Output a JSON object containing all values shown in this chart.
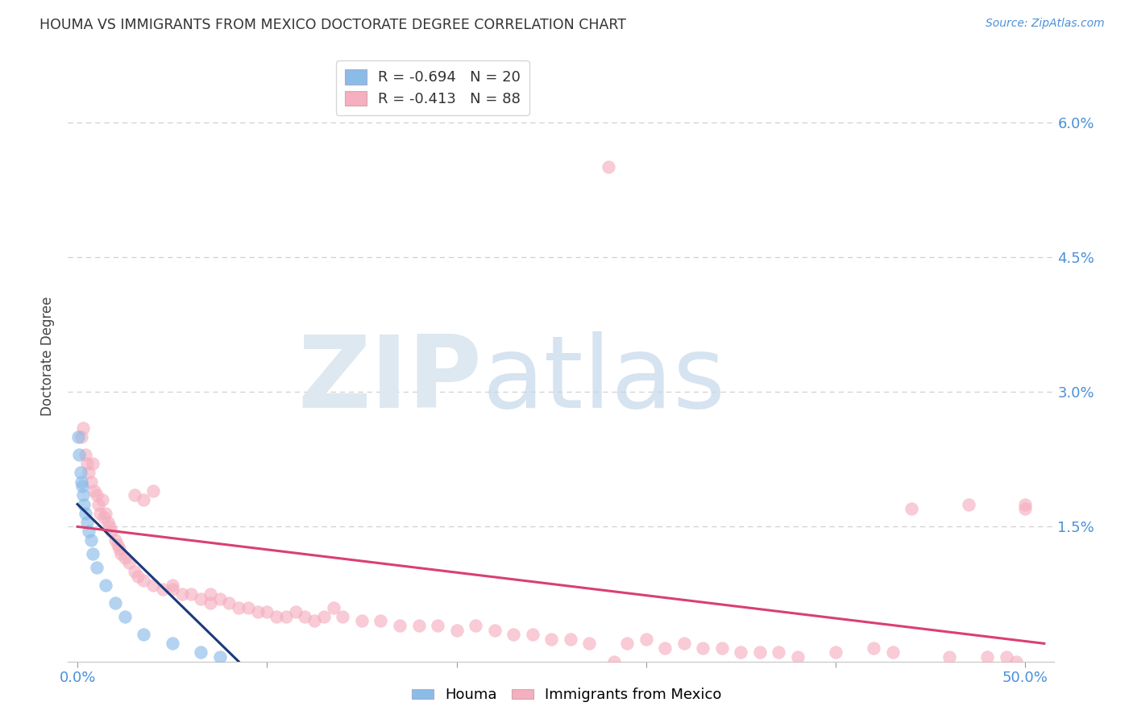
{
  "title": "HOUMA VS IMMIGRANTS FROM MEXICO DOCTORATE DEGREE CORRELATION CHART",
  "source": "Source: ZipAtlas.com",
  "ylabel": "Doctorate Degree",
  "houma_color": "#8bbce8",
  "houma_edge_color": "#8bbce8",
  "houma_line_color": "#1a3a7a",
  "mexico_color": "#f5afc0",
  "mexico_edge_color": "#f5afc0",
  "mexico_line_color": "#d94070",
  "ytick_vals": [
    1.5,
    3.0,
    4.5,
    6.0
  ],
  "ylim": [
    0.0,
    6.8
  ],
  "xlim": [
    -0.5,
    51.5
  ],
  "grid_color": "#d0d0d0",
  "background_color": "#ffffff",
  "houma_x": [
    0.05,
    0.1,
    0.15,
    0.2,
    0.25,
    0.3,
    0.35,
    0.4,
    0.5,
    0.6,
    0.7,
    0.8,
    1.0,
    1.5,
    2.0,
    2.5,
    3.5,
    5.0,
    6.5,
    7.5
  ],
  "houma_y": [
    2.5,
    2.3,
    2.1,
    2.0,
    1.95,
    1.85,
    1.75,
    1.65,
    1.55,
    1.45,
    1.35,
    1.2,
    1.05,
    0.85,
    0.65,
    0.5,
    0.3,
    0.2,
    0.1,
    0.05
  ],
  "mexico_x": [
    0.2,
    0.3,
    0.4,
    0.5,
    0.6,
    0.7,
    0.8,
    0.9,
    1.0,
    1.1,
    1.2,
    1.3,
    1.4,
    1.5,
    1.6,
    1.7,
    1.8,
    2.0,
    2.1,
    2.2,
    2.3,
    2.5,
    2.7,
    3.0,
    3.2,
    3.5,
    4.0,
    4.5,
    5.0,
    5.5,
    6.0,
    6.5,
    7.0,
    7.5,
    8.0,
    8.5,
    9.0,
    9.5,
    10.0,
    10.5,
    11.0,
    11.5,
    12.0,
    12.5,
    13.0,
    13.5,
    14.0,
    15.0,
    16.0,
    17.0,
    18.0,
    19.0,
    20.0,
    21.0,
    22.0,
    23.0,
    24.0,
    25.0,
    26.0,
    27.0,
    28.0,
    29.0,
    30.0,
    31.0,
    32.0,
    33.0,
    34.0,
    35.0,
    36.0,
    37.0,
    38.0,
    40.0,
    42.0,
    43.0,
    44.0,
    46.0,
    47.0,
    48.0,
    49.0,
    50.0,
    50.0,
    49.5,
    28.3,
    3.0,
    3.5,
    4.0,
    5.0,
    7.0
  ],
  "mexico_y": [
    2.5,
    2.6,
    2.3,
    2.2,
    2.1,
    2.0,
    2.2,
    1.9,
    1.85,
    1.75,
    1.65,
    1.8,
    1.6,
    1.65,
    1.55,
    1.5,
    1.45,
    1.35,
    1.3,
    1.25,
    1.2,
    1.15,
    1.1,
    1.0,
    0.95,
    0.9,
    0.85,
    0.8,
    0.85,
    0.75,
    0.75,
    0.7,
    0.65,
    0.7,
    0.65,
    0.6,
    0.6,
    0.55,
    0.55,
    0.5,
    0.5,
    0.55,
    0.5,
    0.45,
    0.5,
    0.6,
    0.5,
    0.45,
    0.45,
    0.4,
    0.4,
    0.4,
    0.35,
    0.4,
    0.35,
    0.3,
    0.3,
    0.25,
    0.25,
    0.2,
    5.5,
    0.2,
    0.25,
    0.15,
    0.2,
    0.15,
    0.15,
    0.1,
    0.1,
    0.1,
    0.05,
    0.1,
    0.15,
    0.1,
    1.7,
    0.05,
    1.75,
    0.05,
    0.05,
    1.7,
    1.75,
    0.0,
    0.0,
    1.85,
    1.8,
    1.9,
    0.8,
    0.75
  ],
  "houma_trend_x": [
    0.0,
    8.5
  ],
  "houma_trend_y": [
    1.75,
    0.0
  ],
  "mexico_trend_x": [
    0.0,
    51.0
  ],
  "mexico_trend_y": [
    1.5,
    0.2
  ]
}
